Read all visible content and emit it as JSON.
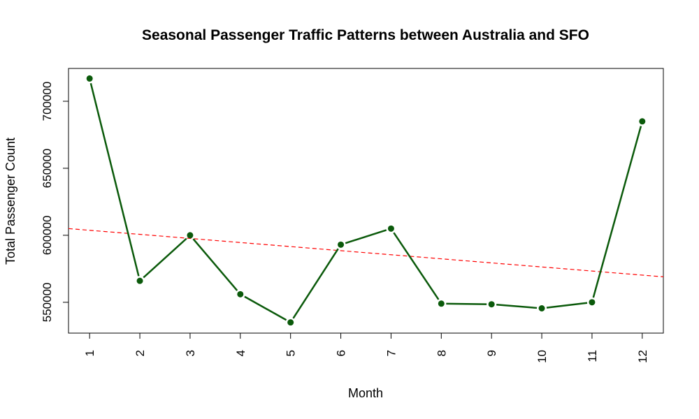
{
  "chart_data": {
    "type": "line",
    "title": "Seasonal Passenger Traffic Patterns between Australia and SFO",
    "xlabel": "Month",
    "ylabel": "Total Passenger Count",
    "categories": [
      "1",
      "2",
      "3",
      "4",
      "5",
      "6",
      "7",
      "8",
      "9",
      "10",
      "11",
      "12"
    ],
    "x": [
      1,
      2,
      3,
      4,
      5,
      6,
      7,
      8,
      9,
      10,
      11,
      12
    ],
    "series": [
      {
        "values": [
          717000,
          566000,
          600000,
          556000,
          535000,
          593000,
          605000,
          549000,
          548500,
          545500,
          550000,
          685000
        ],
        "color": "#0b5a0b",
        "marker": "filled-circle"
      }
    ],
    "trend_line": {
      "style": "dashed",
      "color": "#ff0000",
      "x": [
        0.58,
        12.42
      ],
      "y": [
        605000,
        569000
      ]
    },
    "y_ticks": [
      550000,
      600000,
      650000,
      700000
    ],
    "y_tick_labels": [
      "550000",
      "600000",
      "650000",
      "700000"
    ],
    "xlim": [
      0.58,
      12.42
    ],
    "ylim": [
      527000,
      724500
    ],
    "grid": false,
    "legend": "none"
  }
}
